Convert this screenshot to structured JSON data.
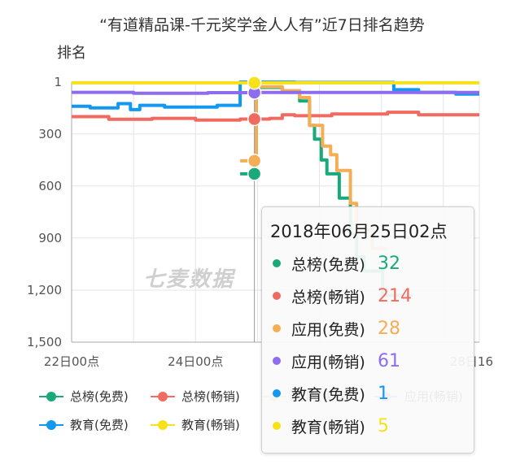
{
  "chart_data": {
    "type": "line",
    "title": "“有道精品课-千元奖学金人人有”近7日排名趋势",
    "ylabel": "排名",
    "yaxis_inverted": true,
    "ylim": [
      1,
      1500
    ],
    "yticks": [
      1,
      300,
      600,
      900,
      1200,
      1500
    ],
    "ytick_labels": [
      "1",
      "300",
      "600",
      "900",
      "1,200",
      "1,500"
    ],
    "xlim": [
      0,
      6.58
    ],
    "xtick_labels": [
      {
        "x": 0,
        "label": "22日00点"
      },
      {
        "x": 2,
        "label": "24日00点"
      },
      {
        "x": 6.58,
        "label": "28日16"
      }
    ],
    "watermark": "七麦数据",
    "series": [
      {
        "name": "总榜(免费)",
        "color": "#1aa97b",
        "points": [
          [
            2.72,
            530
          ],
          [
            2.98,
            530
          ],
          [
            2.98,
            32
          ],
          [
            3.4,
            32
          ],
          [
            3.4,
            60
          ],
          [
            3.68,
            60
          ],
          [
            3.68,
            110
          ],
          [
            3.84,
            110
          ],
          [
            3.84,
            250
          ],
          [
            3.92,
            250
          ],
          [
            3.92,
            330
          ],
          [
            4.03,
            330
          ],
          [
            4.03,
            450
          ],
          [
            4.12,
            450
          ],
          [
            4.12,
            530
          ],
          [
            4.32,
            530
          ],
          [
            4.32,
            670
          ],
          [
            4.5,
            670
          ],
          [
            4.5,
            880
          ],
          [
            4.6,
            880
          ],
          [
            4.6,
            1010
          ],
          [
            4.72,
            1010
          ],
          [
            4.72,
            1090
          ],
          [
            5.02,
            1090
          ],
          [
            5.02,
            1230
          ],
          [
            5.5,
            1230
          ]
        ]
      },
      {
        "name": "总榜(畅销)",
        "color": "#ef6b61",
        "points": [
          [
            0,
            200
          ],
          [
            0.6,
            200
          ],
          [
            0.6,
            215
          ],
          [
            1.3,
            215
          ],
          [
            1.3,
            210
          ],
          [
            2,
            210
          ],
          [
            2,
            220
          ],
          [
            2.72,
            220
          ],
          [
            2.72,
            214
          ],
          [
            3.2,
            214
          ],
          [
            3.2,
            210
          ],
          [
            3.4,
            210
          ],
          [
            3.4,
            190
          ],
          [
            3.6,
            190
          ],
          [
            3.6,
            195
          ],
          [
            4.2,
            195
          ],
          [
            4.2,
            185
          ],
          [
            5.1,
            185
          ],
          [
            5.1,
            175
          ],
          [
            5.6,
            175
          ],
          [
            5.6,
            190
          ],
          [
            6.58,
            190
          ]
        ]
      },
      {
        "name": "应用(免费)",
        "color": "#f4ae55",
        "points": [
          [
            2.72,
            455
          ],
          [
            2.98,
            455
          ],
          [
            2.98,
            28
          ],
          [
            3.4,
            28
          ],
          [
            3.4,
            50
          ],
          [
            3.68,
            50
          ],
          [
            3.68,
            90
          ],
          [
            3.84,
            90
          ],
          [
            3.84,
            250
          ],
          [
            4.05,
            250
          ],
          [
            4.05,
            370
          ],
          [
            4.18,
            370
          ],
          [
            4.18,
            420
          ],
          [
            4.28,
            420
          ],
          [
            4.28,
            510
          ],
          [
            4.5,
            510
          ],
          [
            4.5,
            700
          ],
          [
            4.6,
            700
          ],
          [
            4.6,
            850
          ],
          [
            4.85,
            850
          ],
          [
            4.85,
            960
          ],
          [
            5.1,
            960
          ]
        ]
      },
      {
        "name": "应用(畅销)",
        "color": "#8d6cee",
        "points": [
          [
            0,
            60
          ],
          [
            1,
            60
          ],
          [
            1,
            65
          ],
          [
            2.2,
            65
          ],
          [
            2.2,
            62
          ],
          [
            3,
            62
          ],
          [
            3,
            61
          ],
          [
            6.58,
            61
          ]
        ]
      },
      {
        "name": "教育(免费)",
        "color": "#1298ef",
        "points": [
          [
            0,
            140
          ],
          [
            0.3,
            140
          ],
          [
            0.3,
            150
          ],
          [
            0.75,
            150
          ],
          [
            0.75,
            125
          ],
          [
            0.95,
            125
          ],
          [
            0.95,
            160
          ],
          [
            1.1,
            160
          ],
          [
            1.1,
            135
          ],
          [
            1.5,
            135
          ],
          [
            1.5,
            145
          ],
          [
            2.35,
            145
          ],
          [
            2.35,
            135
          ],
          [
            2.72,
            135
          ],
          [
            2.72,
            1
          ],
          [
            3.6,
            1
          ],
          [
            3.6,
            3
          ],
          [
            5.2,
            3
          ],
          [
            5.2,
            45
          ],
          [
            5.6,
            45
          ],
          [
            5.6,
            60
          ],
          [
            6.2,
            60
          ],
          [
            6.2,
            70
          ],
          [
            6.58,
            70
          ]
        ]
      },
      {
        "name": "教育(畅销)",
        "color": "#f7e11a",
        "points": [
          [
            0,
            5
          ],
          [
            6.58,
            5
          ]
        ]
      }
    ],
    "legend": {
      "placement": "bottom",
      "items": [
        "总榜(免费)",
        "总榜(畅销)",
        "应用(免费)",
        "应用(畅销)",
        "教育(免费)",
        "教育(畅销)"
      ]
    },
    "hover": {
      "x": 2.95,
      "label": "2018年06月25日02点"
    }
  },
  "tooltip": {
    "title": "2018年06月25日02点",
    "rows": [
      {
        "name": "总榜(免费)",
        "value": "32",
        "color": "#1aa97b"
      },
      {
        "name": "总榜(畅销)",
        "value": "214",
        "color": "#ef6b61"
      },
      {
        "name": "应用(免费)",
        "value": "28",
        "color": "#f4ae55"
      },
      {
        "name": "应用(畅销)",
        "value": "61",
        "color": "#8d6cee"
      },
      {
        "name": "教育(免费)",
        "value": "1",
        "color": "#1298ef"
      },
      {
        "name": "教育(畅销)",
        "value": "5",
        "color": "#f7e11a"
      }
    ]
  }
}
